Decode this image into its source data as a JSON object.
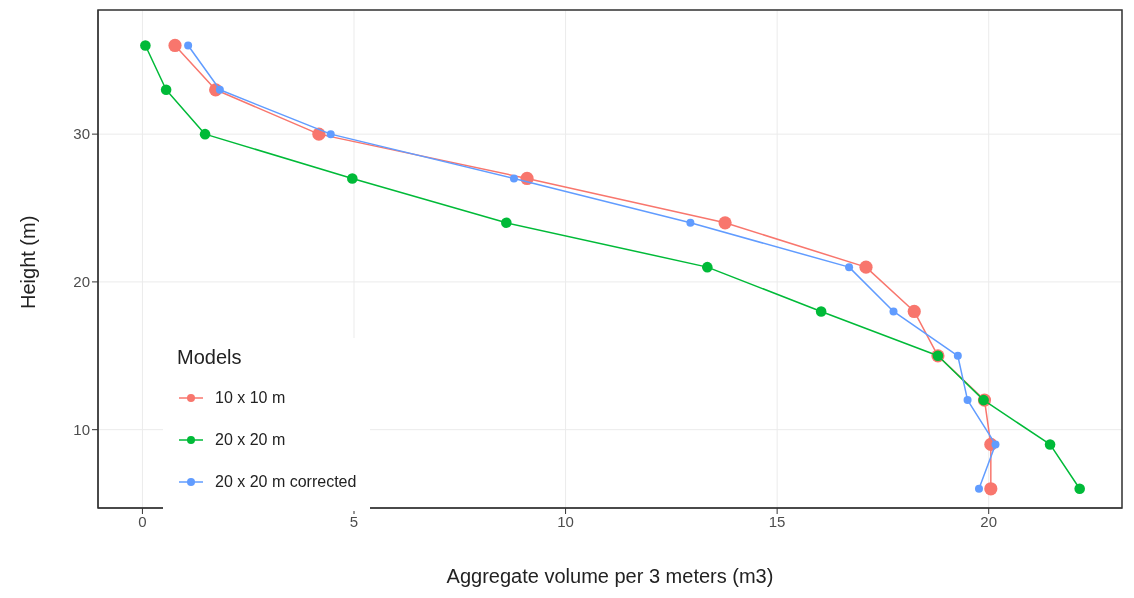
{
  "chart_data": {
    "type": "line",
    "xlabel": "Aggregate volume per 3 meters (m3)",
    "ylabel": "Height (m)",
    "legend_title": "Models",
    "legend": "bottom left",
    "grid": true,
    "marker": "circle",
    "xlim": [
      -1.05,
      23.15
    ],
    "ylim": [
      4.7,
      38.4
    ],
    "xticks": [
      0,
      5,
      10,
      15,
      20
    ],
    "yticks": [
      10,
      20,
      30
    ],
    "series": [
      {
        "name": "10 x 10 m",
        "color": "#f8766d",
        "x": [
          0.77,
          1.73,
          4.17,
          9.09,
          13.77,
          17.1,
          18.24,
          18.8,
          19.9,
          20.05,
          20.05
        ],
        "values": [
          36,
          33,
          30,
          27,
          24,
          21,
          18,
          15,
          12,
          9,
          6
        ]
      },
      {
        "name": "20 x 20 m",
        "color": "#00ba38",
        "x": [
          0.07,
          0.56,
          1.48,
          4.96,
          8.6,
          13.35,
          16.04,
          18.8,
          19.88,
          21.45,
          22.15
        ],
        "values": [
          36,
          33,
          30,
          27,
          24,
          21,
          18,
          15,
          12,
          9,
          6
        ]
      },
      {
        "name": "20 x 20 m corrected",
        "color": "#619cff",
        "x": [
          1.08,
          1.83,
          4.45,
          8.78,
          12.95,
          16.7,
          17.75,
          19.27,
          19.5,
          20.16,
          19.77
        ],
        "values": [
          36,
          33,
          30,
          27,
          24,
          21,
          18,
          15,
          12,
          9,
          6
        ]
      }
    ]
  }
}
